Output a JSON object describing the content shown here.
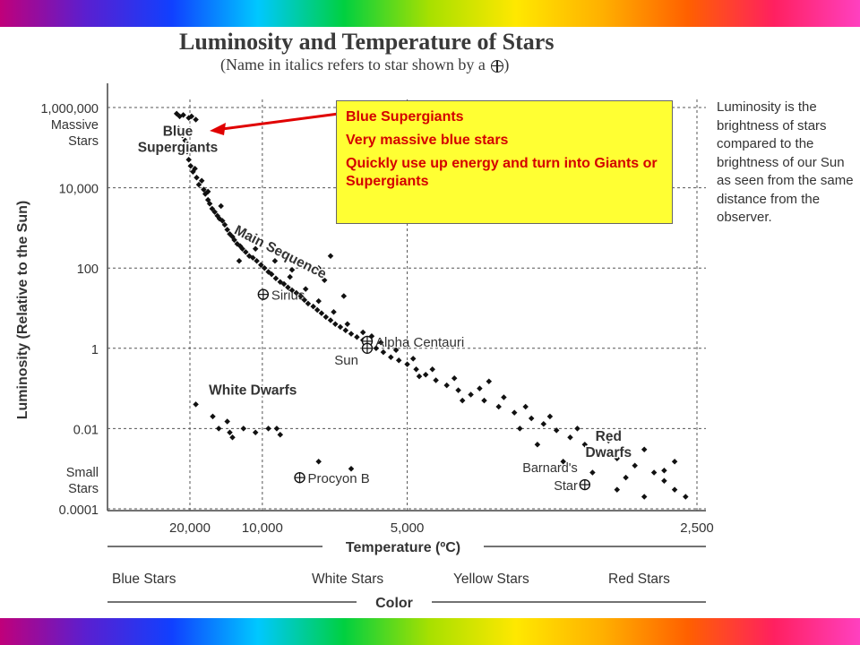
{
  "title": "Luminosity and Temperature of Stars",
  "subtitle": "(Name in italics refers to star shown by a",
  "subtitle_end": ")",
  "callout": {
    "heading": "Blue Supergiants",
    "line1": "Very massive blue stars",
    "line2": "Quickly use up energy and turn into Giants or Supergiants"
  },
  "side_note": "Luminosity is the brightness of stars compared to the brightness of our Sun as seen from the same distance from the observer.",
  "colors": {
    "callout_bg": "#ffff33",
    "callout_text": "#d40000",
    "arrow": "#e00000"
  },
  "color_axis": {
    "label": "Color",
    "categories": [
      "Blue Stars",
      "White Stars",
      "Yellow Stars",
      "Red Stars"
    ]
  },
  "chart_data": {
    "type": "scatter",
    "xlabel": "Temperature (ºC)",
    "ylabel": "Luminosity (Relative to the Sun)",
    "x_scale": "reciprocal",
    "y_scale": "log",
    "x_reversed": true,
    "xlim": [
      30000,
      2500
    ],
    "ylim": [
      0.0001,
      1000000
    ],
    "x_ticks": [
      {
        "value": 20000,
        "label": "20,000"
      },
      {
        "value": 10000,
        "label": "10,000"
      },
      {
        "value": 5000,
        "label": "5,000"
      },
      {
        "value": 2500,
        "label": "2,500"
      }
    ],
    "y_ticks": [
      {
        "value": 1000000,
        "label": "1,000,000"
      },
      {
        "value": 10000,
        "label": "10,000"
      },
      {
        "value": 100,
        "label": "100"
      },
      {
        "value": 1,
        "label": "1"
      },
      {
        "value": 0.01,
        "label": "0.01"
      },
      {
        "value": 0.0001,
        "label": "0.0001"
      }
    ],
    "y_extra_labels": [
      {
        "value": 1000000,
        "lines": [
          "Massive",
          "Stars"
        ]
      },
      {
        "value": 0.0001,
        "lines": [
          "Small",
          "Stars"
        ]
      }
    ],
    "grid": true,
    "region_labels": [
      {
        "lines": [
          "Blue",
          "Supergiants"
        ],
        "x": 24000,
        "y": 200000
      },
      {
        "lines": [
          "Main Sequence"
        ],
        "x": 9000,
        "y": 200
      },
      {
        "lines": [
          "White Dwarfs"
        ],
        "x": 10700,
        "y": 0.07
      },
      {
        "lines": [
          "Red",
          "Dwarfs"
        ],
        "x": 2950,
        "y": 0.005
      }
    ],
    "named_stars": [
      {
        "name": "Sirius",
        "x": 9940,
        "y": 22
      },
      {
        "name": "Alpha Centauri",
        "x": 5800,
        "y": 1.5
      },
      {
        "name": "Sun",
        "x": 5800,
        "y": 1
      },
      {
        "name": "Procyon B",
        "x": 7950,
        "y": 0.0006
      },
      {
        "name": "Barnard's Star",
        "x": 3100,
        "y": 0.0004
      }
    ],
    "points": [
      [
        24480,
        700000
      ],
      [
        23280,
        600000
      ],
      [
        22000,
        650000
      ],
      [
        20330,
        550000
      ],
      [
        19570,
        600000
      ],
      [
        18500,
        500000
      ],
      [
        23700,
        300000
      ],
      [
        22300,
        200000
      ],
      [
        21400,
        150000
      ],
      [
        20800,
        80000
      ],
      [
        20330,
        50000
      ],
      [
        19800,
        35000
      ],
      [
        19200,
        25000
      ],
      [
        18700,
        30000
      ],
      [
        18300,
        18000
      ],
      [
        17800,
        12000
      ],
      [
        17200,
        15000
      ],
      [
        16800,
        9000
      ],
      [
        16500,
        7000
      ],
      [
        16000,
        5000
      ],
      [
        15700,
        4000
      ],
      [
        15300,
        3000
      ],
      [
        14900,
        2500
      ],
      [
        14500,
        2000
      ],
      [
        14200,
        1700
      ],
      [
        13800,
        1500
      ],
      [
        13500,
        1200
      ],
      [
        13200,
        900
      ],
      [
        12900,
        700
      ],
      [
        12600,
        600
      ],
      [
        12400,
        500
      ],
      [
        12100,
        400
      ],
      [
        11800,
        350
      ],
      [
        11600,
        300
      ],
      [
        11300,
        250
      ],
      [
        11000,
        200
      ],
      [
        10700,
        180
      ],
      [
        10400,
        150
      ],
      [
        10100,
        120
      ],
      [
        9850,
        100
      ],
      [
        9600,
        80
      ],
      [
        9400,
        70
      ],
      [
        9150,
        55
      ],
      [
        8900,
        45
      ],
      [
        8700,
        40
      ],
      [
        8500,
        33
      ],
      [
        8300,
        28
      ],
      [
        8100,
        24
      ],
      [
        7900,
        20
      ],
      [
        7750,
        16
      ],
      [
        7600,
        13
      ],
      [
        7400,
        11
      ],
      [
        7250,
        9
      ],
      [
        7100,
        7.5
      ],
      [
        6950,
        6
      ],
      [
        6800,
        5
      ],
      [
        6650,
        4
      ],
      [
        6500,
        3.4
      ],
      [
        6350,
        2.8
      ],
      [
        6200,
        2.3
      ],
      [
        6050,
        1.9
      ],
      [
        5900,
        1.6
      ],
      [
        5750,
        1.3
      ],
      [
        5600,
        1.0
      ],
      [
        5450,
        0.8
      ],
      [
        5300,
        0.6
      ],
      [
        5150,
        0.5
      ],
      [
        5000,
        0.4
      ],
      [
        4850,
        0.3
      ],
      [
        4700,
        0.22
      ],
      [
        4550,
        0.16
      ],
      [
        4400,
        0.12
      ],
      [
        4250,
        0.09
      ],
      [
        4100,
        0.07
      ],
      [
        3950,
        0.05
      ],
      [
        3800,
        0.035
      ],
      [
        3650,
        0.025
      ],
      [
        3500,
        0.018
      ],
      [
        3400,
        0.013
      ],
      [
        3300,
        0.009
      ],
      [
        3200,
        0.006
      ],
      [
        3100,
        0.004
      ],
      [
        3000,
        0.0025
      ],
      [
        2900,
        0.0018
      ],
      [
        2800,
        0.0012
      ],
      [
        2700,
        0.0008
      ],
      [
        2650,
        0.0005
      ],
      [
        2600,
        0.0003
      ],
      [
        2550,
        0.0002
      ],
      [
        16000,
        8000
      ],
      [
        14000,
        3500
      ],
      [
        12000,
        800
      ],
      [
        10500,
        300
      ],
      [
        9200,
        150
      ],
      [
        8400,
        60
      ],
      [
        7700,
        30
      ],
      [
        7200,
        15
      ],
      [
        6700,
        8
      ],
      [
        6300,
        4
      ],
      [
        5900,
        2.5
      ],
      [
        5500,
        1.4
      ],
      [
        5200,
        0.9
      ],
      [
        4900,
        0.55
      ],
      [
        4600,
        0.3
      ],
      [
        4300,
        0.18
      ],
      [
        4000,
        0.1
      ],
      [
        3750,
        0.06
      ],
      [
        3550,
        0.035
      ],
      [
        3350,
        0.02
      ],
      [
        3150,
        0.01
      ],
      [
        2950,
        0.005
      ],
      [
        2750,
        0.003
      ],
      [
        2600,
        0.0015
      ],
      [
        7200,
        100
      ],
      [
        6800,
        200
      ],
      [
        7000,
        50
      ],
      [
        11900,
        150
      ],
      [
        8300,
        90
      ],
      [
        6400,
        20
      ],
      [
        5700,
        2
      ],
      [
        4800,
        0.2
      ],
      [
        4200,
        0.05
      ],
      [
        3900,
        0.15
      ],
      [
        3600,
        0.01
      ],
      [
        3450,
        0.004
      ],
      [
        3250,
        0.0015
      ],
      [
        3050,
        0.0008
      ],
      [
        2850,
        0.0006
      ],
      [
        2750,
        0.0002
      ],
      [
        2650,
        0.0009
      ],
      [
        2900,
        0.0003
      ],
      [
        18500,
        0.04
      ],
      [
        15200,
        0.02
      ],
      [
        13200,
        0.015
      ],
      [
        12600,
        0.006
      ],
      [
        11500,
        0.01
      ],
      [
        10500,
        0.008
      ],
      [
        9600,
        0.01
      ],
      [
        9100,
        0.01
      ],
      [
        8900,
        0.007
      ],
      [
        7200,
        0.0015
      ],
      [
        6200,
        0.001
      ],
      [
        14300,
        0.01
      ],
      [
        12900,
        0.008
      ]
    ]
  }
}
